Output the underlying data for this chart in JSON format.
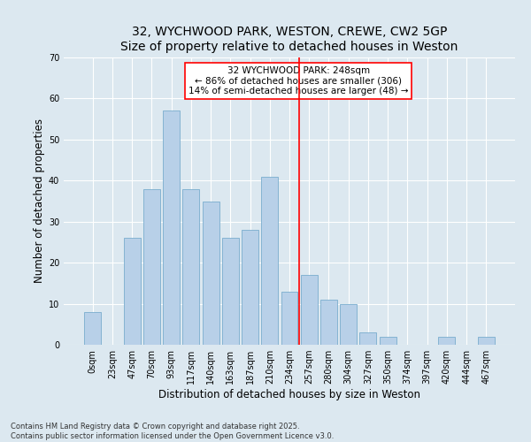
{
  "title_line1": "32, WYCHWOOD PARK, WESTON, CREWE, CW2 5GP",
  "title_line2": "Size of property relative to detached houses in Weston",
  "xlabel": "Distribution of detached houses by size in Weston",
  "ylabel": "Number of detached properties",
  "categories": [
    "0sqm",
    "23sqm",
    "47sqm",
    "70sqm",
    "93sqm",
    "117sqm",
    "140sqm",
    "163sqm",
    "187sqm",
    "210sqm",
    "234sqm",
    "257sqm",
    "280sqm",
    "304sqm",
    "327sqm",
    "350sqm",
    "374sqm",
    "397sqm",
    "420sqm",
    "444sqm",
    "467sqm"
  ],
  "bar_heights": [
    8,
    0,
    26,
    38,
    57,
    38,
    35,
    26,
    28,
    41,
    13,
    17,
    11,
    10,
    3,
    2,
    0,
    0,
    2,
    0,
    2
  ],
  "bar_color": "#b8d0e8",
  "bar_edge_color": "#7aadce",
  "vline_x": 10.5,
  "vline_color": "red",
  "annotation_text": "32 WYCHWOOD PARK: 248sqm\n← 86% of detached houses are smaller (306)\n14% of semi-detached houses are larger (48) →",
  "annotation_box_color": "white",
  "annotation_edge_color": "red",
  "ylim": [
    0,
    70
  ],
  "yticks": [
    0,
    10,
    20,
    30,
    40,
    50,
    60,
    70
  ],
  "background_color": "#dce8f0",
  "footer_text": "Contains HM Land Registry data © Crown copyright and database right 2025.\nContains public sector information licensed under the Open Government Licence v3.0.",
  "title_fontsize": 10,
  "subtitle_fontsize": 9,
  "axis_label_fontsize": 8.5,
  "tick_fontsize": 7,
  "annotation_fontsize": 7.5,
  "footer_fontsize": 6
}
